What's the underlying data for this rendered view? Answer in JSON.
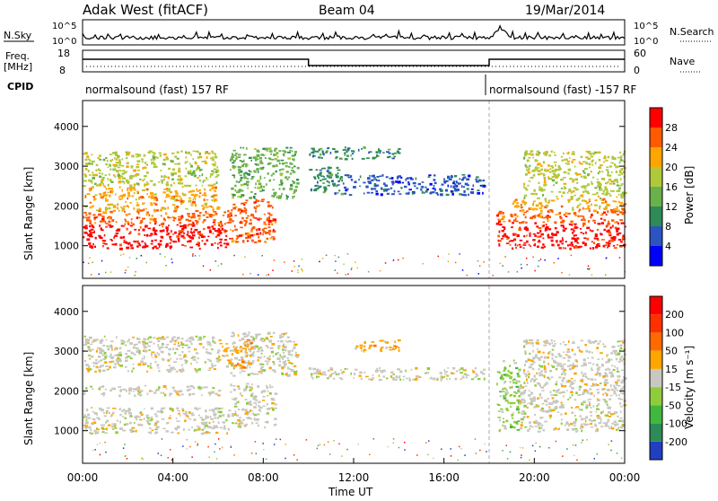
{
  "header": {
    "title": "Adak West (fitACF)",
    "beam": "Beam 04",
    "date": "19/Mar/2014"
  },
  "nsky_panel": {
    "left_label": "N.Sky",
    "right_label": "N.Search",
    "left_ticks": [
      "10^5",
      "10^0"
    ],
    "right_ticks": [
      "10^5",
      "10^0"
    ]
  },
  "freq_panel": {
    "left_label": "Freq.",
    "left_unit": "[MHz]",
    "right_label": "Nave",
    "left_ticks": [
      "18",
      "8"
    ],
    "right_ticks": [
      "60",
      "0"
    ],
    "cpid_label": "CPID",
    "cpid_segments": [
      {
        "text": "normalsound (fast) 157 RF",
        "start_hour": 0,
        "end_hour": 18
      },
      {
        "text": "normalsound (fast) -157 RF",
        "start_hour": 18,
        "end_hour": 24
      }
    ],
    "freq_steps": [
      {
        "start_hour": 0,
        "end_hour": 10,
        "level": "high"
      },
      {
        "start_hour": 10,
        "end_hour": 18,
        "level": "low"
      },
      {
        "start_hour": 18,
        "end_hour": 24,
        "level": "high"
      }
    ]
  },
  "chart_data": [
    {
      "type": "heatmap",
      "name": "power",
      "ylabel": "Slant Range [km]",
      "y_ticks": [
        1000,
        2000,
        3000,
        4000
      ],
      "ylim": [
        180,
        4650
      ],
      "xlim": [
        0,
        24
      ],
      "colorbar_label": "Power [dB]",
      "colorbar_ticks": [
        "28",
        "24",
        "20",
        "16",
        "12",
        "8",
        "4"
      ],
      "colors": [
        "#0000ff",
        "#2a55c0",
        "#2e8b57",
        "#6ab04c",
        "#b0c93a",
        "#ffa500",
        "#ff5a00",
        "#ff0000"
      ],
      "regions": [
        {
          "x0": 0.0,
          "x1": 6.5,
          "y0": 950,
          "y1": 1550,
          "level": 7
        },
        {
          "x0": 0.0,
          "x1": 6.5,
          "y0": 1550,
          "y1": 1900,
          "level": 6
        },
        {
          "x0": 6.5,
          "x1": 8.5,
          "y0": 1100,
          "y1": 2200,
          "level": 6
        },
        {
          "x0": 0.0,
          "x1": 6.0,
          "y0": 1900,
          "y1": 2500,
          "level": 5
        },
        {
          "x0": 0.0,
          "x1": 6.0,
          "y0": 2500,
          "y1": 3400,
          "level": 4
        },
        {
          "x0": 6.5,
          "x1": 9.5,
          "y0": 2200,
          "y1": 3500,
          "level": 3
        },
        {
          "x0": 10.0,
          "x1": 11.5,
          "y0": 2300,
          "y1": 3000,
          "level": 2
        },
        {
          "x0": 11.5,
          "x1": 17.8,
          "y0": 2300,
          "y1": 2800,
          "level": 1
        },
        {
          "x0": 10.0,
          "x1": 14.0,
          "y0": 3200,
          "y1": 3500,
          "level": 2
        },
        {
          "x0": 18.3,
          "x1": 24.0,
          "y0": 950,
          "y1": 1600,
          "level": 7
        },
        {
          "x0": 18.3,
          "x1": 24.0,
          "y0": 1600,
          "y1": 1900,
          "level": 6
        },
        {
          "x0": 19.0,
          "x1": 24.0,
          "y0": 1900,
          "y1": 2200,
          "level": 5
        },
        {
          "x0": 19.5,
          "x1": 24.0,
          "y0": 2200,
          "y1": 3400,
          "level": 4
        }
      ]
    },
    {
      "type": "heatmap",
      "name": "velocity",
      "ylabel": "Slant Range [km]",
      "y_ticks": [
        1000,
        2000,
        3000,
        4000
      ],
      "ylim": [
        180,
        4650
      ],
      "xlim": [
        0,
        24
      ],
      "colorbar_label": "Velocity [m s⁻¹]",
      "colorbar_ticks": [
        "200",
        "100",
        "50",
        "15",
        "-15",
        "-50",
        "-100",
        "-200"
      ],
      "colors": [
        "#2040c0",
        "#2e8b57",
        "#40b840",
        "#8fcc3c",
        "#c8c8c0",
        "#ffa500",
        "#ff6a00",
        "#ff3000",
        "#ff0000"
      ],
      "regions": [
        {
          "x0": 0.0,
          "x1": 6.5,
          "y0": 950,
          "y1": 1600,
          "level": 4
        },
        {
          "x0": 6.5,
          "x1": 8.5,
          "y0": 1100,
          "y1": 2200,
          "level": 4
        },
        {
          "x0": 0.0,
          "x1": 6.0,
          "y0": 1900,
          "y1": 2150,
          "level": 4
        },
        {
          "x0": 0.0,
          "x1": 6.0,
          "y0": 2500,
          "y1": 3400,
          "level": 4
        },
        {
          "x0": 6.5,
          "x1": 9.5,
          "y0": 2400,
          "y1": 3500,
          "level": 4
        },
        {
          "x0": 6.0,
          "x1": 7.5,
          "y0": 2600,
          "y1": 3300,
          "level": 5
        },
        {
          "x0": 10.0,
          "x1": 17.8,
          "y0": 2300,
          "y1": 2600,
          "level": 4
        },
        {
          "x0": 12.0,
          "x1": 14.0,
          "y0": 3000,
          "y1": 3300,
          "level": 5
        },
        {
          "x0": 18.3,
          "x1": 19.3,
          "y0": 1000,
          "y1": 2800,
          "level": 3
        },
        {
          "x0": 19.3,
          "x1": 24.0,
          "y0": 1000,
          "y1": 2200,
          "level": 4
        },
        {
          "x0": 19.5,
          "x1": 24.0,
          "y0": 2200,
          "y1": 3300,
          "level": 4
        }
      ]
    }
  ],
  "time_axis": {
    "ticks": [
      "00:00",
      "04:00",
      "08:00",
      "12:00",
      "16:00",
      "20:00",
      "00:00"
    ],
    "label": "Time UT"
  }
}
